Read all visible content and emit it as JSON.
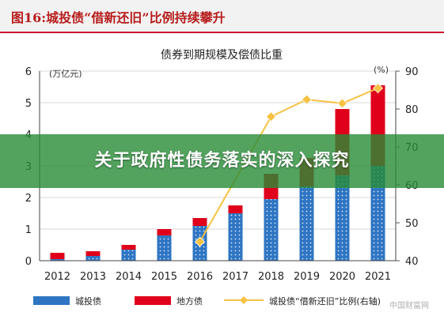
{
  "figure": {
    "title": "图16:城投债“借新还旧”比例持续攀升"
  },
  "banner": {
    "text": "关于政府性债务落实的深入探究"
  },
  "colors": {
    "series_blue": "#2e75c3",
    "series_red": "#e0001b",
    "series_line": "#f5c242"
  },
  "chart_data": {
    "type": "bar",
    "title": "债券到期规模及偿债比重",
    "categories": [
      "2012",
      "2013",
      "2014",
      "2015",
      "2016",
      "2017",
      "2018",
      "2019",
      "2020",
      "2021"
    ],
    "series": [
      {
        "name": "城投债",
        "chart": "stacked-bar",
        "axis": "left",
        "values": [
          0.05,
          0.15,
          0.35,
          0.8,
          1.1,
          1.5,
          1.95,
          2.35,
          2.7,
          3.0
        ]
      },
      {
        "name": "地方债",
        "chart": "stacked-bar",
        "axis": "left",
        "values": [
          0.2,
          0.15,
          0.15,
          0.2,
          0.25,
          0.25,
          0.8,
          0.9,
          2.1,
          2.55
        ]
      },
      {
        "name": "城投债“借新还旧”比例(右轴)",
        "chart": "line",
        "axis": "right",
        "values": [
          null,
          null,
          null,
          null,
          45,
          null,
          78,
          82.5,
          81.5,
          85.5
        ]
      }
    ],
    "y_left": {
      "label": "(万亿元)",
      "range": [
        0,
        6
      ],
      "ticks": [
        0,
        1,
        2,
        3,
        4,
        5,
        6
      ]
    },
    "y_right": {
      "label": "(%)",
      "range": [
        40,
        90
      ],
      "ticks": [
        40,
        50,
        60,
        70,
        80,
        90
      ]
    },
    "grid": true,
    "legend": "bottom",
    "watermark": "中国财富网"
  }
}
